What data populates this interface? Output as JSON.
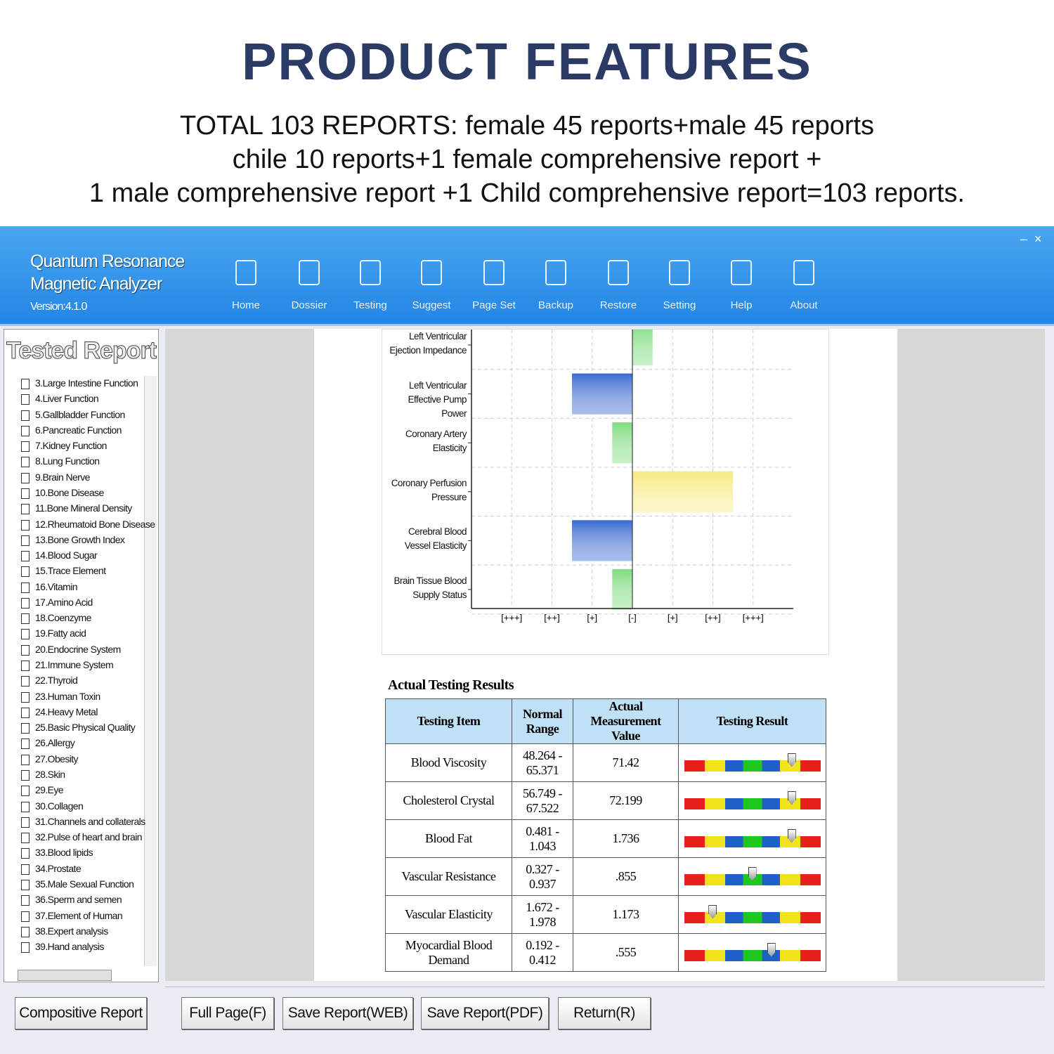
{
  "header": {
    "title": "PRODUCT FEATURES",
    "lines": [
      "TOTAL 103 REPORTS: female 45 reports+male 45 reports",
      "chile 10 reports+1 female comprehensive report +",
      "1 male comprehensive report +1 Child comprehensive report=103 reports."
    ]
  },
  "app": {
    "name_lines": [
      "Quantum Resonance",
      "Magnetic Analyzer"
    ],
    "version": "Version:4.1.0"
  },
  "toolbar": [
    "Home",
    "Dossier",
    "Testing",
    "Suggest",
    "Page Set",
    "Backup",
    "Restore",
    "Setting",
    "Help",
    "About"
  ],
  "sidebar": {
    "title": "Tested Report",
    "items": [
      "3.Large Intestine Function",
      "4.Liver Function",
      "5.Gallbladder Function",
      "6.Pancreatic Function",
      "7.Kidney Function",
      "8.Lung Function",
      "9.Brain Nerve",
      "10.Bone Disease",
      "11.Bone Mineral Density",
      "12.Rheumatoid Bone Disease",
      "13.Bone Growth Index",
      "14.Blood Sugar",
      "15.Trace Element",
      "16.Vitamin",
      "17.Amino Acid",
      "18.Coenzyme",
      "19.Fatty acid",
      "20.Endocrine System",
      "21.Immune System",
      "22.Thyroid",
      "23.Human Toxin",
      "24.Heavy Metal",
      "25.Basic Physical Quality",
      "26.Allergy",
      "27.Obesity",
      "28.Skin",
      "29.Eye",
      "30.Collagen",
      "31.Channels and collaterals",
      "32.Pulse of heart and brain",
      "33.Blood lipids",
      "34.Prostate",
      "35.Male Sexual Function",
      "36.Sperm and semen",
      "37.Element of Human",
      "38.Expert analysis",
      "39.Hand analysis"
    ],
    "button": "Compositive Report"
  },
  "chart_data": {
    "type": "bar",
    "orientation": "horizontal",
    "categories": [
      "Left Ventricular Ejection Impedance",
      "Left Ventricular Effective Pump Power",
      "Coronary Artery Elasticity",
      "Coronary Perfusion Pressure",
      "Cerebral Blood Vessel Elasticity",
      "Brain Tissue Blood Supply Status"
    ],
    "values": [
      0.5,
      -1.5,
      -0.5,
      2.5,
      -1.5,
      -0.5
    ],
    "colors": [
      "#7fdc7f",
      "#3a6ad0",
      "#7fdc7f",
      "#f6ea80",
      "#3a6ad0",
      "#7fdc7f"
    ],
    "xlim": [
      -4,
      4
    ],
    "xticks": [
      {
        "value": -3,
        "label": "[+++]"
      },
      {
        "value": -2,
        "label": "[++]"
      },
      {
        "value": -1,
        "label": "[+]"
      },
      {
        "value": 0,
        "label": "[-]"
      },
      {
        "value": 1,
        "label": "[+]"
      },
      {
        "value": 2,
        "label": "[++]"
      },
      {
        "value": 3,
        "label": "[+++]"
      }
    ],
    "grid": true
  },
  "table": {
    "title": "Actual Testing Results",
    "headers": [
      "Testing Item",
      "Normal Range",
      "Actual Measurement Value",
      "Testing Result"
    ],
    "rows": [
      {
        "item": "Blood Viscosity",
        "range": "48.264 - 65.371",
        "value": "71.42",
        "gauge": 0.79
      },
      {
        "item": "Cholesterol Crystal",
        "range": "56.749 - 67.522",
        "value": "72.199",
        "gauge": 0.79
      },
      {
        "item": "Blood Fat",
        "range": "0.481 - 1.043",
        "value": "1.736",
        "gauge": 0.79
      },
      {
        "item": "Vascular Resistance",
        "range": "0.327 - 0.937",
        "value": ".855",
        "gauge": 0.5
      },
      {
        "item": "Vascular Elasticity",
        "range": "1.672 - 1.978",
        "value": "1.173",
        "gauge": 0.21
      },
      {
        "item": "Myocardial Blood Demand",
        "range": "0.192 - 0.412",
        "value": ".555",
        "gauge": 0.64
      }
    ]
  },
  "buttons": [
    "Full Page(F)",
    "Save Report(WEB)",
    "Save Report(PDF)",
    "Return(R)"
  ]
}
